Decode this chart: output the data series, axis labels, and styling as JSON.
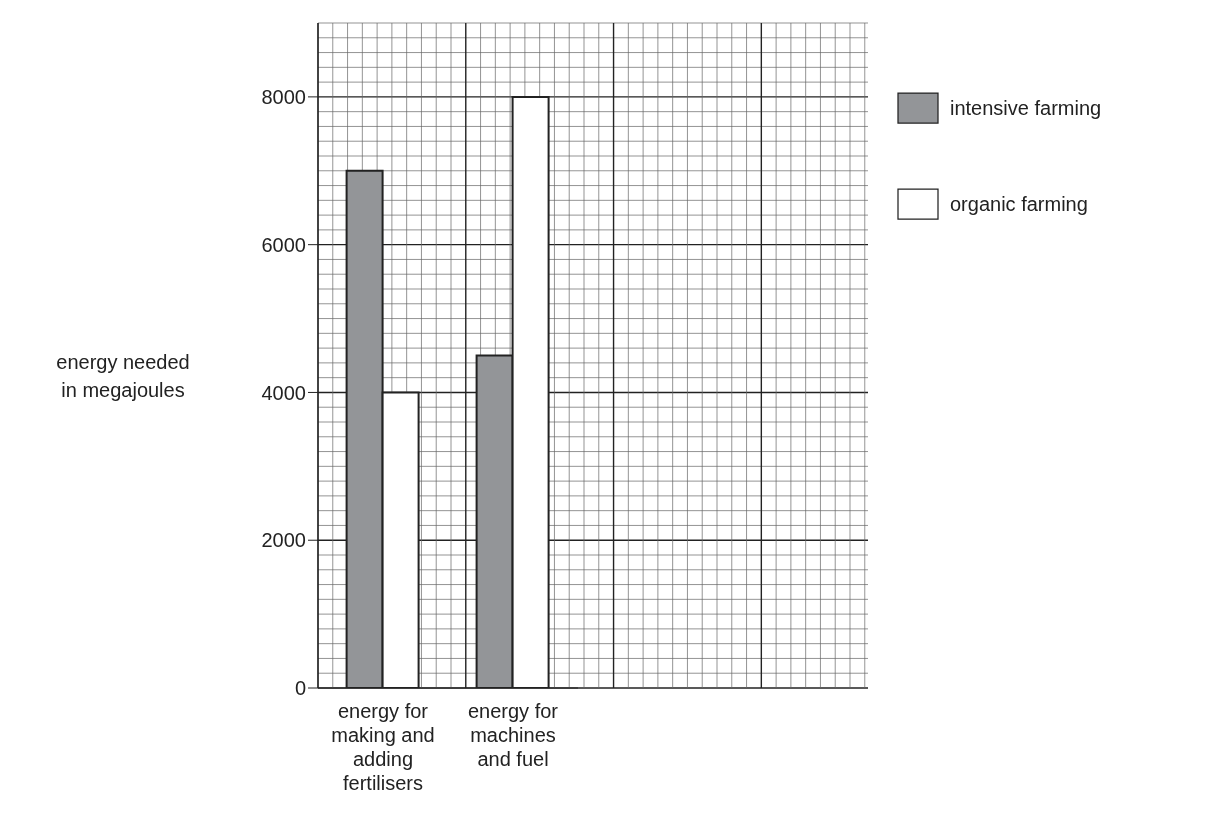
{
  "chart_data": {
    "type": "bar",
    "ylabel": "energy needed in megajoules",
    "categories": [
      "energy for making and adding fertilisers",
      "energy for machines and fuel"
    ],
    "series": [
      {
        "name": "intensive farming",
        "color": "#939598",
        "values": [
          7000,
          4500
        ]
      },
      {
        "name": "organic farming",
        "color": "#ffffff",
        "values": [
          4000,
          8000
        ]
      }
    ],
    "ylim": [
      0,
      9000
    ],
    "yticks": [
      0,
      2000,
      4000,
      6000,
      8000
    ],
    "grid": true,
    "legend": "top right"
  }
}
